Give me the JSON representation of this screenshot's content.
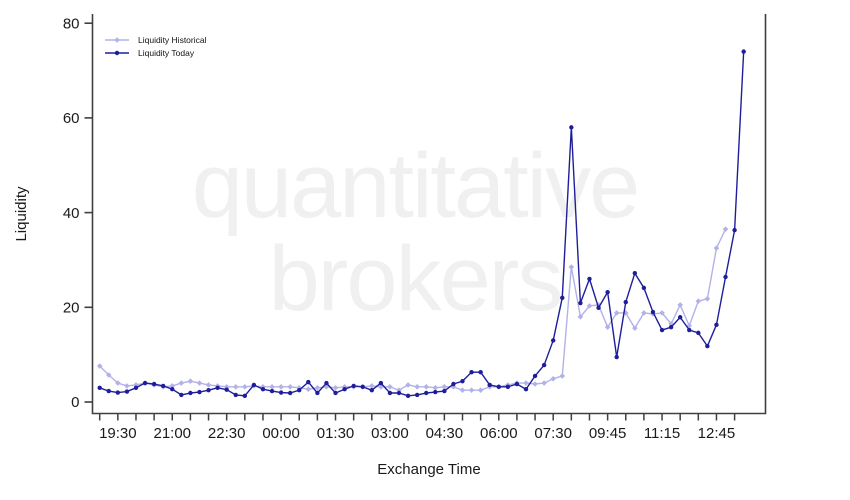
{
  "watermark": {
    "line1": "quantitative",
    "line2": "brokers",
    "color": "#f0f0f1"
  },
  "chart_data": {
    "type": "line",
    "title": "",
    "xlabel": "Exchange Time",
    "ylabel": "Liquidity",
    "ylim": [
      0,
      80
    ],
    "yticks": [
      0,
      20,
      40,
      60,
      80
    ],
    "grid": false,
    "legend_position": "top-left",
    "x_tick_labels": [
      "19:30",
      "21:00",
      "22:30",
      "00:00",
      "01:30",
      "03:00",
      "04:30",
      "06:00",
      "07:30",
      "09:45",
      "11:15",
      "12:45"
    ],
    "categories": [
      "19:00",
      "19:15",
      "19:30",
      "19:45",
      "20:00",
      "20:15",
      "20:30",
      "20:45",
      "21:00",
      "21:15",
      "21:30",
      "21:45",
      "22:00",
      "22:15",
      "22:30",
      "22:45",
      "23:00",
      "23:15",
      "23:30",
      "23:45",
      "00:00",
      "00:15",
      "00:30",
      "00:45",
      "01:00",
      "01:15",
      "01:30",
      "01:45",
      "02:00",
      "02:15",
      "02:30",
      "02:45",
      "03:00",
      "03:15",
      "03:30",
      "03:45",
      "04:00",
      "04:15",
      "04:30",
      "04:45",
      "05:00",
      "05:15",
      "05:30",
      "05:45",
      "06:00",
      "06:15",
      "06:30",
      "06:45",
      "07:00",
      "07:15",
      "07:30",
      "07:45",
      "08:00",
      "08:15",
      "09:15",
      "09:30",
      "09:45",
      "10:00",
      "10:15",
      "10:30",
      "10:45",
      "11:00",
      "11:15",
      "11:30",
      "11:45",
      "12:00",
      "12:15",
      "12:30",
      "12:45",
      "13:00",
      "13:15",
      "13:30"
    ],
    "series": [
      {
        "name": "Liquidity Historical",
        "color": "#b2b2e8",
        "marker": "diamond",
        "values": [
          7.6,
          5.7,
          4.0,
          3.4,
          3.6,
          4.0,
          3.6,
          3.2,
          3.4,
          4.0,
          4.4,
          4.0,
          3.6,
          3.4,
          3.2,
          3.2,
          3.2,
          3.4,
          3.2,
          3.2,
          3.2,
          3.2,
          3.0,
          2.7,
          3.0,
          3.2,
          3.0,
          3.2,
          3.2,
          3.2,
          3.4,
          3.2,
          3.2,
          2.5,
          3.6,
          3.2,
          3.2,
          3.0,
          3.2,
          3.2,
          2.5,
          2.5,
          2.5,
          3.2,
          3.2,
          3.6,
          4.0,
          4.0,
          3.8,
          4.0,
          4.9,
          5.5,
          28.5,
          18.0,
          20.3,
          20.5,
          15.8,
          18.8,
          18.8,
          15.6,
          18.8,
          18.6,
          18.8,
          16.5,
          20.5,
          16.1,
          21.3,
          21.8,
          32.5,
          36.5,
          null,
          null
        ]
      },
      {
        "name": "Liquidity Today",
        "color": "#1e1e9b",
        "marker": "circle",
        "values": [
          3.0,
          2.3,
          2.0,
          2.2,
          3.0,
          4.0,
          3.8,
          3.4,
          2.7,
          1.5,
          1.9,
          2.1,
          2.5,
          3.0,
          2.6,
          1.5,
          1.3,
          3.6,
          2.7,
          2.3,
          2.0,
          1.9,
          2.5,
          4.2,
          1.9,
          4.0,
          1.9,
          2.7,
          3.4,
          3.2,
          2.5,
          4.0,
          1.9,
          1.9,
          1.3,
          1.5,
          1.9,
          2.1,
          2.3,
          3.8,
          4.4,
          6.3,
          6.3,
          3.6,
          3.2,
          3.2,
          3.8,
          2.7,
          5.5,
          7.8,
          13.0,
          22.0,
          58.0,
          20.9,
          26.0,
          19.9,
          23.2,
          9.5,
          21.1,
          27.2,
          24.1,
          19.0,
          15.2,
          15.8,
          17.9,
          15.2,
          14.6,
          11.8,
          16.3,
          26.4,
          36.3,
          74.0
        ]
      }
    ]
  }
}
